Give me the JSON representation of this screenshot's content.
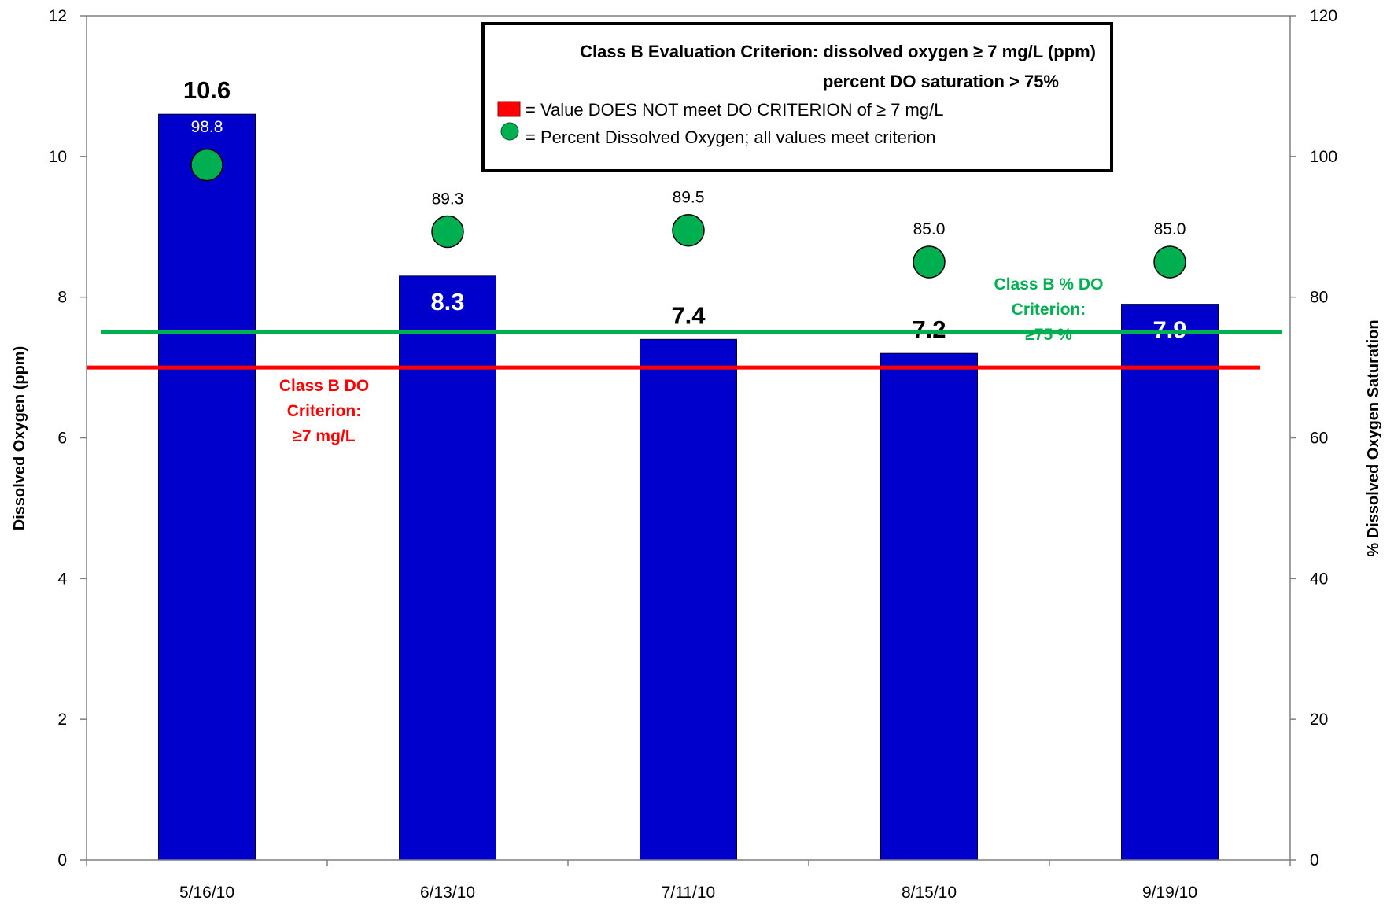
{
  "chart_data": {
    "type": "bar",
    "categories": [
      "5/16/10",
      "6/13/10",
      "7/11/10",
      "8/15/10",
      "9/19/10"
    ],
    "series": [
      {
        "axis": "left",
        "type": "bar",
        "values": [
          10.6,
          8.3,
          7.4,
          7.2,
          7.9
        ],
        "labels": [
          "10.6",
          "8.3",
          "7.4",
          "7.2",
          "7.9"
        ],
        "color": "#0000CC"
      },
      {
        "axis": "right",
        "type": "scatter",
        "values": [
          98.8,
          89.3,
          89.5,
          85.0,
          85.0
        ],
        "labels": [
          "98.8",
          "89.3",
          "89.5",
          "85.0",
          "85.0"
        ],
        "color": "#00B050"
      }
    ],
    "ylabel": "Dissolved Oxygen (ppm)",
    "ylim": [
      0,
      12
    ],
    "yticks": [
      "0",
      "2",
      "4",
      "6",
      "8",
      "10",
      "12"
    ],
    "ylabel_right": "% Dissolved Oxygen Saturation",
    "ylim_right": [
      0,
      120
    ],
    "yticks_right": [
      "0",
      "20",
      "40",
      "60",
      "80",
      "100",
      "120"
    ],
    "reference_lines": [
      {
        "axis": "left",
        "value": 7,
        "color": "#FF0000",
        "label_lines": [
          "Class B DO",
          "Criterion:",
          "≥7 mg/L"
        ]
      },
      {
        "axis": "right",
        "value": 75,
        "color": "#00B050",
        "label_lines": [
          "Class B % DO",
          "Criterion:",
          "≥75 %"
        ]
      }
    ],
    "legend": {
      "position": "top-right",
      "title_line1": "Class B Evaluation Criterion: dissolved oxygen ≥ 7 mg/L (ppm)",
      "title_line2": "percent DO saturation > 75%",
      "entries": [
        {
          "marker": "red-rect",
          "text": "= Value DOES NOT meet DO CRITERION of ≥ 7 mg/L"
        },
        {
          "marker": "green-circle",
          "text": "= Percent Dissolved Oxygen; all values meet criterion"
        }
      ]
    },
    "grid": false
  }
}
